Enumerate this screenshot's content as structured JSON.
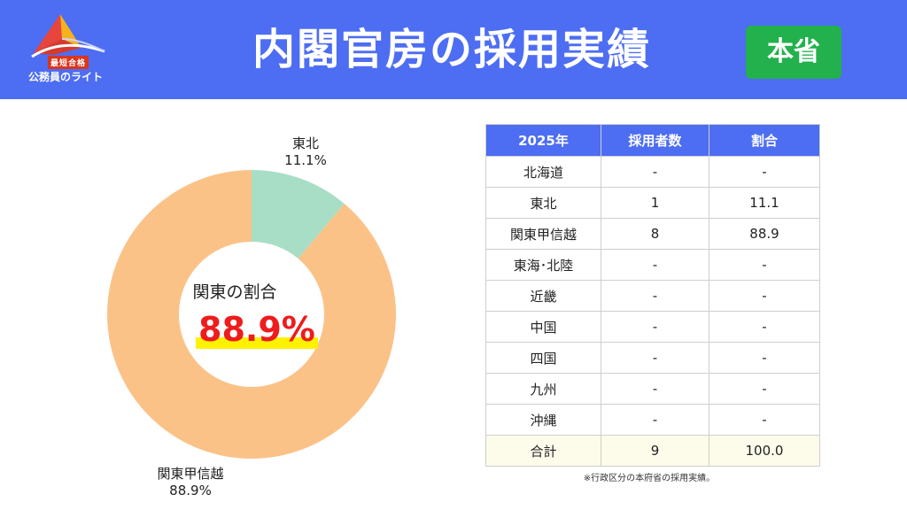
{
  "header": {
    "logo_badge": "最短合格",
    "logo_text": "公務員のライト",
    "title": "内閣官房の採用実績",
    "badge": "本省"
  },
  "donut": {
    "center_label": "関東の割合",
    "center_value": "88.9%"
  },
  "chart_data": {
    "type": "pie",
    "categories": [
      "東北",
      "関東甲信越"
    ],
    "values": [
      11.1,
      88.9
    ],
    "value_labels": [
      "11.1%",
      "88.9%"
    ],
    "colors": [
      "#a8dec6",
      "#fbc287"
    ],
    "donut": true
  },
  "table": {
    "headers": [
      "2025年",
      "採用者数",
      "割合"
    ],
    "rows": [
      [
        "北海道",
        "-",
        "-"
      ],
      [
        "東北",
        "1",
        "11.1"
      ],
      [
        "関東甲信越",
        "8",
        "88.9"
      ],
      [
        "東海･北陸",
        "-",
        "-"
      ],
      [
        "近畿",
        "-",
        "-"
      ],
      [
        "中国",
        "-",
        "-"
      ],
      [
        "四国",
        "-",
        "-"
      ],
      [
        "九州",
        "-",
        "-"
      ],
      [
        "沖縄",
        "-",
        "-"
      ]
    ],
    "total": [
      "合計",
      "9",
      "100.0"
    ],
    "note": "※行政区分の本府省の採用実績。"
  },
  "colors": {
    "header_bg": "#4d6df2",
    "badge_bg": "#22b14c",
    "highlight_text": "#ee1c1c",
    "highlight_marker": "#fff200"
  }
}
